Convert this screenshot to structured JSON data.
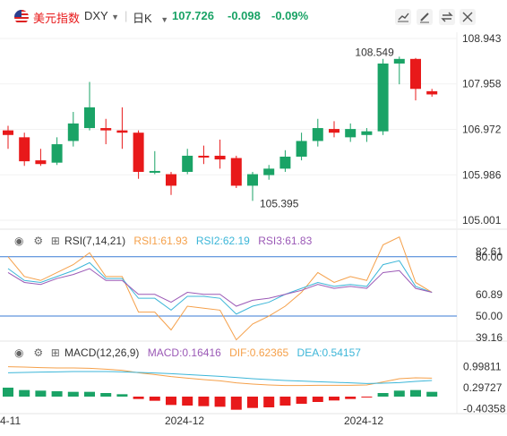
{
  "header": {
    "name": "美元指数",
    "symbol": "DXY",
    "period": "日K",
    "price": "107.726",
    "change": "-0.098",
    "change_pct": "-0.09%"
  },
  "colors": {
    "up": "#1aa366",
    "down": "#e8191a",
    "orange": "#f5a04a",
    "cyan": "#3cb6d8",
    "blue": "#3a7bd5",
    "purple": "#9b59b6"
  },
  "price_axis": [
    "108.943",
    "107.958",
    "106.972",
    "105.986",
    "105.001"
  ],
  "annotations": {
    "high": "108.549",
    "low": "105.395"
  },
  "candles": [
    {
      "o": 106.95,
      "h": 107.05,
      "l": 106.55,
      "c": 106.85
    },
    {
      "o": 106.8,
      "h": 106.9,
      "l": 106.18,
      "c": 106.28
    },
    {
      "o": 106.3,
      "h": 106.55,
      "l": 106.18,
      "c": 106.22
    },
    {
      "o": 106.25,
      "h": 106.8,
      "l": 106.2,
      "c": 106.65
    },
    {
      "o": 106.72,
      "h": 107.35,
      "l": 106.6,
      "c": 107.1
    },
    {
      "o": 107.0,
      "h": 108.0,
      "l": 106.95,
      "c": 107.45
    },
    {
      "o": 107.0,
      "h": 107.2,
      "l": 106.65,
      "c": 106.95
    },
    {
      "o": 106.95,
      "h": 107.45,
      "l": 106.55,
      "c": 106.9
    },
    {
      "o": 106.9,
      "h": 106.95,
      "l": 105.9,
      "c": 106.05
    },
    {
      "o": 106.05,
      "h": 106.5,
      "l": 106.0,
      "c": 106.07
    },
    {
      "o": 106.0,
      "h": 106.05,
      "l": 105.55,
      "c": 105.75
    },
    {
      "o": 106.05,
      "h": 106.55,
      "l": 106.0,
      "c": 106.4
    },
    {
      "o": 106.4,
      "h": 106.62,
      "l": 106.22,
      "c": 106.37
    },
    {
      "o": 106.4,
      "h": 106.75,
      "l": 106.12,
      "c": 106.32
    },
    {
      "o": 106.35,
      "h": 106.4,
      "l": 105.7,
      "c": 105.75
    },
    {
      "o": 105.75,
      "h": 106.05,
      "l": 105.42,
      "c": 106.0
    },
    {
      "o": 105.98,
      "h": 106.2,
      "l": 105.88,
      "c": 106.12
    },
    {
      "o": 106.12,
      "h": 106.52,
      "l": 106.05,
      "c": 106.38
    },
    {
      "o": 106.38,
      "h": 106.9,
      "l": 106.3,
      "c": 106.72
    },
    {
      "o": 106.72,
      "h": 107.2,
      "l": 106.6,
      "c": 107.0
    },
    {
      "o": 106.98,
      "h": 107.15,
      "l": 106.8,
      "c": 106.9
    },
    {
      "o": 106.8,
      "h": 107.1,
      "l": 106.7,
      "c": 106.98
    },
    {
      "o": 106.85,
      "h": 107.0,
      "l": 106.7,
      "c": 106.93
    },
    {
      "o": 106.93,
      "h": 108.5,
      "l": 106.85,
      "c": 108.4
    },
    {
      "o": 108.4,
      "h": 108.55,
      "l": 107.95,
      "c": 108.5
    },
    {
      "o": 108.5,
      "h": 108.52,
      "l": 107.6,
      "c": 107.85
    },
    {
      "o": 107.8,
      "h": 107.85,
      "l": 107.68,
      "c": 107.73
    }
  ],
  "rsi": {
    "label": "RSI(7,14,21)",
    "rsi1_label": "RSI1:61.93",
    "rsi2_label": "RSI2:62.19",
    "rsi3_label": "RSI3:61.83",
    "axis": [
      "80.00",
      "82.61",
      "60.89",
      "50.00",
      "39.16"
    ],
    "rsi1": [
      80,
      70,
      68,
      72,
      76,
      82,
      70,
      70,
      52,
      52,
      43,
      55,
      54,
      53,
      38,
      46,
      50,
      55,
      62,
      72,
      67,
      70,
      68,
      86,
      90,
      67,
      62
    ],
    "rsi2": [
      74,
      68,
      67,
      70,
      73,
      77,
      69,
      69,
      59,
      59,
      53,
      60,
      60,
      59,
      51,
      55,
      57,
      61,
      64,
      67,
      65,
      66,
      65,
      76,
      78,
      65,
      62
    ],
    "rsi3": [
      72,
      67,
      66,
      69,
      71,
      74,
      68,
      68,
      61,
      61,
      57,
      62,
      61,
      61,
      55,
      58,
      59,
      61,
      63,
      66,
      64,
      65,
      64,
      72,
      73,
      64,
      62
    ]
  },
  "macd": {
    "label": "MACD(12,26,9)",
    "macd_label": "MACD:0.16416",
    "dif_label": "DIF:0.62365",
    "dea_label": "DEA:0.54157",
    "axis": [
      "0.99811",
      "0.29727",
      "-0.40358"
    ],
    "hist": [
      0.3,
      0.22,
      0.2,
      0.18,
      0.16,
      0.16,
      0.12,
      0.08,
      -0.08,
      -0.14,
      -0.28,
      -0.3,
      -0.32,
      -0.34,
      -0.44,
      -0.38,
      -0.36,
      -0.3,
      -0.24,
      -0.18,
      -0.13,
      -0.08,
      -0.03,
      0.12,
      0.2,
      0.22,
      0.16
    ],
    "dif": [
      1.0,
      0.99,
      0.97,
      0.96,
      0.96,
      0.95,
      0.92,
      0.88,
      0.8,
      0.74,
      0.67,
      0.62,
      0.57,
      0.53,
      0.46,
      0.42,
      0.39,
      0.37,
      0.37,
      0.38,
      0.38,
      0.38,
      0.39,
      0.49,
      0.6,
      0.63,
      0.62
    ],
    "dea": [
      0.8,
      0.81,
      0.82,
      0.83,
      0.84,
      0.84,
      0.84,
      0.83,
      0.81,
      0.79,
      0.77,
      0.74,
      0.71,
      0.68,
      0.64,
      0.6,
      0.57,
      0.54,
      0.52,
      0.5,
      0.48,
      0.46,
      0.44,
      0.45,
      0.47,
      0.51,
      0.54
    ]
  },
  "x_axis": [
    "4-11",
    "2024-12",
    "2024-12"
  ]
}
